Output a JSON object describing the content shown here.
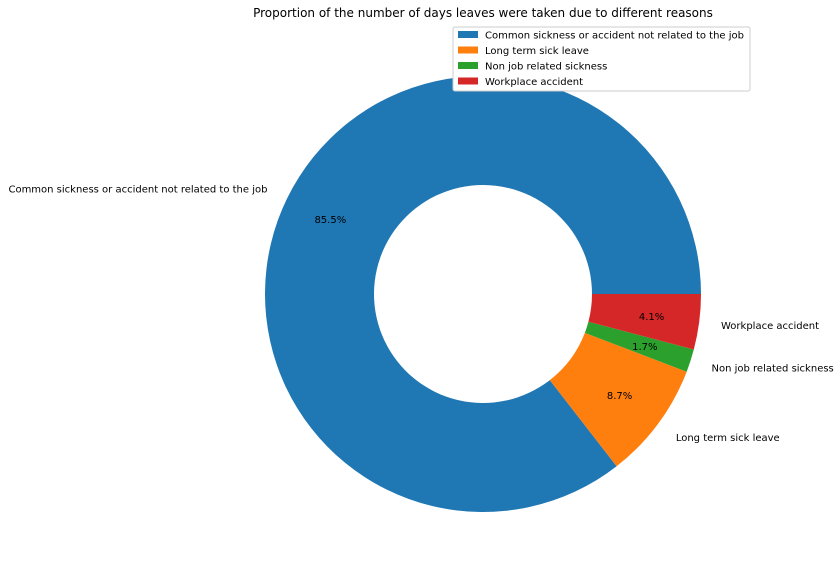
{
  "chart_data": {
    "type": "pie",
    "donut": true,
    "title": "Proportion of the number of days leaves were taken due to different reasons",
    "legend_placement": "top-right",
    "categories": [
      "Common sickness  or accident not related to the job",
      "Long term sick leave",
      "Non job related sickness",
      "Workplace accident"
    ],
    "values": [
      85.5,
      8.7,
      1.7,
      4.1
    ],
    "value_labels": [
      "85.5%",
      "8.7%",
      "1.7%",
      "4.1%"
    ],
    "colors": [
      "#1f77b4",
      "#ff7f0e",
      "#2ca02c",
      "#d62728"
    ]
  }
}
